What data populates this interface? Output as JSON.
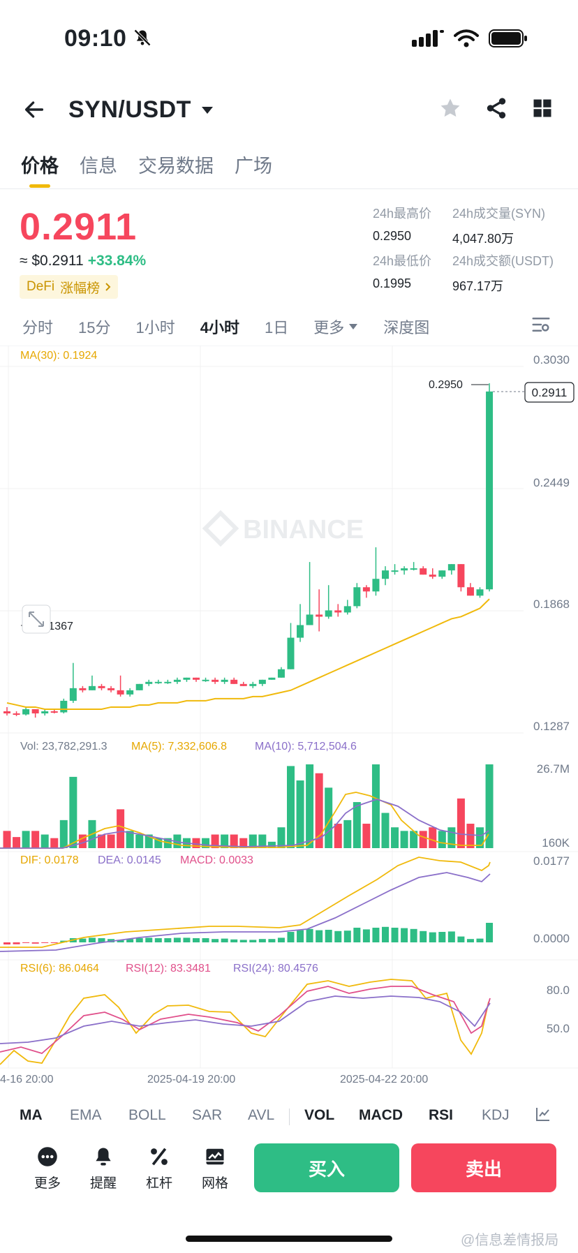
{
  "status_bar": {
    "time": "09:10"
  },
  "nav": {
    "title": "SYN/USDT"
  },
  "tabs": [
    "价格",
    "信息",
    "交易数据",
    "广场"
  ],
  "ticker": {
    "price": "0.2911",
    "price_usd": "≈ $0.2911",
    "change": "+33.84%",
    "tag_category": "DeFi",
    "tag_rank": "涨幅榜",
    "high_label": "24h最高价",
    "high_value": "0.2950",
    "low_label": "24h最低价",
    "low_value": "0.1995",
    "vol_base_label": "24h成交量(SYN)",
    "vol_base_value": "4,047.80万",
    "vol_quote_label": "24h成交额(USDT)",
    "vol_quote_value": "967.17万"
  },
  "intervals": [
    "分时",
    "15分",
    "1小时",
    "4小时",
    "1日",
    "更多",
    "深度图"
  ],
  "active_interval": "4小时",
  "chart_texts": {
    "ma30": "MA(30): 0.1924",
    "price_axis": [
      "0.3030",
      "0.2449",
      "0.1868",
      "0.1287"
    ],
    "high_marker": "0.2950",
    "low_marker": "0.1367",
    "last_price": "0.2911",
    "watermark": "BINANCE",
    "vol": "Vol: 23,782,291.3",
    "vol_ma5": "MA(5): 7,332,606.8",
    "vol_ma10": "MA(10): 5,712,504.6",
    "vol_axis": [
      "26.7M",
      "160K"
    ],
    "dif": "DIF: 0.0178",
    "dea": "DEA: 0.0145",
    "macd": "MACD: 0.0033",
    "macd_axis": [
      "0.0177",
      "0.0000"
    ],
    "rsi6": "RSI(6): 86.0464",
    "rsi12": "RSI(12): 83.3481",
    "rsi24": "RSI(24): 80.4576",
    "rsi_axis": [
      "80.0",
      "50.0"
    ],
    "dates": [
      "4-16 20:00",
      "2025-04-19 20:00",
      "2025-04-22 20:00"
    ]
  },
  "chart_data": {
    "type": "candlestick",
    "ylim": [
      0.1287,
      0.303
    ],
    "candles": [
      [
        0.139,
        0.141,
        0.137,
        0.138
      ],
      [
        0.138,
        0.139,
        0.1367,
        0.1375
      ],
      [
        0.1375,
        0.141,
        0.137,
        0.14
      ],
      [
        0.14,
        0.14,
        0.136,
        0.138
      ],
      [
        0.138,
        0.14,
        0.137,
        0.139
      ],
      [
        0.139,
        0.14,
        0.138,
        0.1385
      ],
      [
        0.1385,
        0.145,
        0.138,
        0.144
      ],
      [
        0.144,
        0.162,
        0.143,
        0.15
      ],
      [
        0.15,
        0.151,
        0.148,
        0.149
      ],
      [
        0.149,
        0.156,
        0.149,
        0.151
      ],
      [
        0.151,
        0.152,
        0.149,
        0.15
      ],
      [
        0.15,
        0.151,
        0.148,
        0.149
      ],
      [
        0.149,
        0.156,
        0.146,
        0.147
      ],
      [
        0.147,
        0.15,
        0.146,
        0.149
      ],
      [
        0.149,
        0.152,
        0.149,
        0.152
      ],
      [
        0.152,
        0.154,
        0.151,
        0.153
      ],
      [
        0.153,
        0.154,
        0.152,
        0.153
      ],
      [
        0.153,
        0.154,
        0.152,
        0.153
      ],
      [
        0.153,
        0.155,
        0.152,
        0.154
      ],
      [
        0.154,
        0.155,
        0.153,
        0.155
      ],
      [
        0.155,
        0.155,
        0.153,
        0.154
      ],
      [
        0.154,
        0.155,
        0.153,
        0.154
      ],
      [
        0.154,
        0.155,
        0.152,
        0.153
      ],
      [
        0.153,
        0.155,
        0.152,
        0.154
      ],
      [
        0.154,
        0.155,
        0.152,
        0.152
      ],
      [
        0.152,
        0.153,
        0.151,
        0.151
      ],
      [
        0.151,
        0.153,
        0.15,
        0.152
      ],
      [
        0.152,
        0.154,
        0.151,
        0.154
      ],
      [
        0.154,
        0.155,
        0.154,
        0.155
      ],
      [
        0.155,
        0.16,
        0.155,
        0.159
      ],
      [
        0.159,
        0.181,
        0.159,
        0.174
      ],
      [
        0.174,
        0.19,
        0.172,
        0.18
      ],
      [
        0.18,
        0.21,
        0.18,
        0.185
      ],
      [
        0.185,
        0.197,
        0.177,
        0.184
      ],
      [
        0.184,
        0.199,
        0.183,
        0.187
      ],
      [
        0.187,
        0.19,
        0.184,
        0.186
      ],
      [
        0.186,
        0.192,
        0.185,
        0.189
      ],
      [
        0.189,
        0.2,
        0.188,
        0.198
      ],
      [
        0.198,
        0.199,
        0.193,
        0.196
      ],
      [
        0.196,
        0.217,
        0.194,
        0.202
      ],
      [
        0.202,
        0.208,
        0.199,
        0.206
      ],
      [
        0.206,
        0.209,
        0.204,
        0.206
      ],
      [
        0.206,
        0.208,
        0.204,
        0.207
      ],
      [
        0.207,
        0.21,
        0.206,
        0.207
      ],
      [
        0.207,
        0.208,
        0.204,
        0.204
      ],
      [
        0.204,
        0.207,
        0.202,
        0.203
      ],
      [
        0.203,
        0.206,
        0.202,
        0.206
      ],
      [
        0.206,
        0.209,
        0.204,
        0.209
      ],
      [
        0.209,
        0.209,
        0.196,
        0.198
      ],
      [
        0.198,
        0.2,
        0.194,
        0.194
      ],
      [
        0.194,
        0.198,
        0.193,
        0.197
      ],
      [
        0.197,
        0.295,
        0.196,
        0.2911
      ]
    ],
    "ma30": [
      0.143,
      0.142,
      0.141,
      0.141,
      0.14,
      0.14,
      0.14,
      0.14,
      0.14,
      0.14,
      0.14,
      0.141,
      0.141,
      0.141,
      0.142,
      0.142,
      0.143,
      0.143,
      0.143,
      0.144,
      0.144,
      0.144,
      0.145,
      0.145,
      0.145,
      0.145,
      0.146,
      0.146,
      0.147,
      0.148,
      0.149,
      0.151,
      0.153,
      0.155,
      0.157,
      0.159,
      0.161,
      0.163,
      0.165,
      0.167,
      0.169,
      0.171,
      0.173,
      0.175,
      0.177,
      0.179,
      0.181,
      0.183,
      0.184,
      0.186,
      0.188,
      0.1924
    ]
  }
}
